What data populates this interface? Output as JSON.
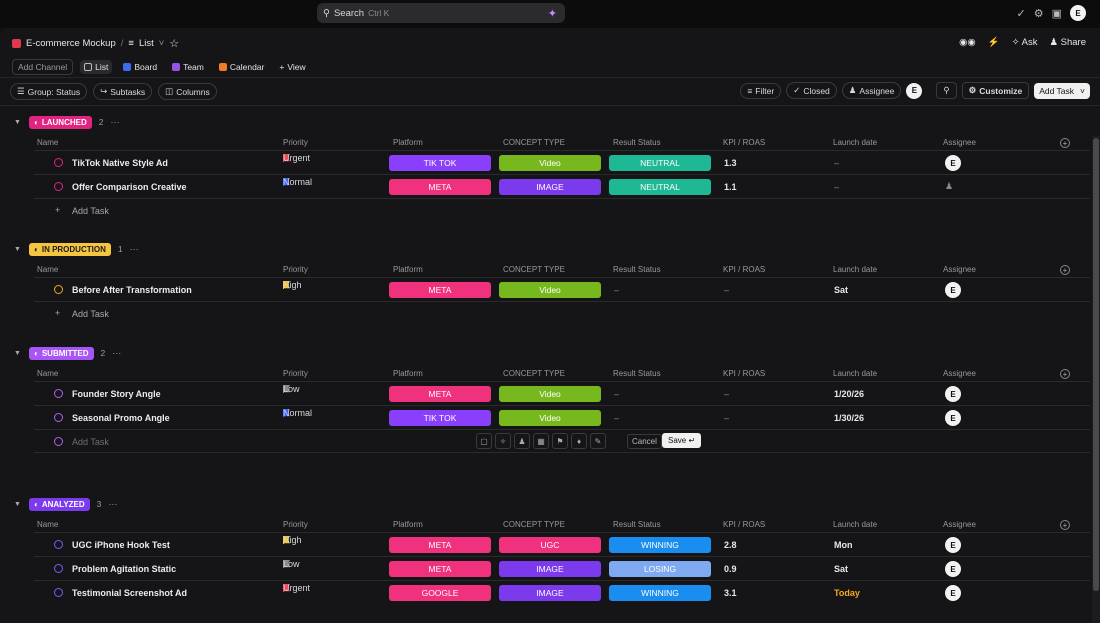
{
  "topbar": {
    "search_label": "Search",
    "search_kbd": "Ctrl K",
    "avatar": "E"
  },
  "breadcrumb": {
    "space": "E-commerce Mockup",
    "view": "List"
  },
  "header_actions": {
    "ask": "Ask",
    "share": "Share"
  },
  "views": {
    "add_channel": "Add Channel",
    "tabs": [
      "List",
      "Board",
      "Team",
      "Calendar"
    ],
    "add_view": "View"
  },
  "toolbar": {
    "group": "Group: Status",
    "subtasks": "Subtasks",
    "columns": "Columns",
    "filter": "Filter",
    "closed": "Closed",
    "assignee": "Assignee",
    "avatar": "E",
    "customize": "Customize",
    "add_task": "Add Task"
  },
  "columns": [
    "Name",
    "Priority",
    "Platform",
    "CONCEPT TYPE",
    "Result Status",
    "KPI / ROAS",
    "Launch date",
    "Assignee"
  ],
  "colors": {
    "tiktok": "#8a3ffc",
    "meta": "#f0317d",
    "google": "#f0317d",
    "video": "#78b81f",
    "image": "#7c3aed",
    "ugc": "#f0317d",
    "neutral": "#1fb894",
    "winning": "#1a8df0",
    "losing": "#7fa9f0",
    "launched": "#e0247f",
    "production": "#f5c542",
    "submitted": "#a855f7",
    "analyzed": "#7c3aed"
  },
  "groups": [
    {
      "status": "LAUNCHED",
      "count": "2",
      "tasks": [
        {
          "name": "TikTok Native Style Ad",
          "priority": "Urgent",
          "platform": "TIK TOK",
          "concept": "Video",
          "result": "NEUTRAL",
          "kpi": "1.3",
          "launch": "–",
          "assignee": "E"
        },
        {
          "name": "Offer Comparison Creative",
          "priority": "Normal",
          "platform": "META",
          "concept": "IMAGE",
          "result": "NEUTRAL",
          "kpi": "1.1",
          "launch": "–",
          "assignee": ""
        }
      ],
      "add_task": "Add Task"
    },
    {
      "status": "IN PRODUCTION",
      "count": "1",
      "tasks": [
        {
          "name": "Before After Transformation",
          "priority": "High",
          "platform": "META",
          "concept": "Video",
          "result": "–",
          "kpi": "–",
          "launch": "Sat",
          "assignee": "E"
        }
      ],
      "add_task": "Add Task"
    },
    {
      "status": "SUBMITTED",
      "count": "2",
      "tasks": [
        {
          "name": "Founder Story Angle",
          "priority": "Low",
          "platform": "META",
          "concept": "Video",
          "result": "–",
          "kpi": "–",
          "launch": "1/20/26",
          "assignee": "E"
        },
        {
          "name": "Seasonal Promo Angle",
          "priority": "Normal",
          "platform": "TIK TOK",
          "concept": "Video",
          "result": "–",
          "kpi": "–",
          "launch": "1/30/26",
          "assignee": "E"
        }
      ],
      "add_task_placeholder": "Add Task",
      "cancel": "Cancel",
      "save": "Save"
    },
    {
      "status": "ANALYZED",
      "count": "3",
      "tasks": [
        {
          "name": "UGC iPhone Hook Test",
          "priority": "High",
          "platform": "META",
          "concept": "UGC",
          "result": "WINNING",
          "kpi": "2.8",
          "launch": "Mon",
          "assignee": "E"
        },
        {
          "name": "Problem Agitation Static",
          "priority": "Low",
          "platform": "META",
          "concept": "IMAGE",
          "result": "LOSING",
          "kpi": "0.9",
          "launch": "Sat",
          "assignee": "E"
        },
        {
          "name": "Testimonial Screenshot Ad",
          "priority": "Urgent",
          "platform": "GOOGLE",
          "concept": "IMAGE",
          "result": "WINNING",
          "kpi": "3.1",
          "launch": "Today",
          "assignee": "E"
        }
      ]
    }
  ]
}
